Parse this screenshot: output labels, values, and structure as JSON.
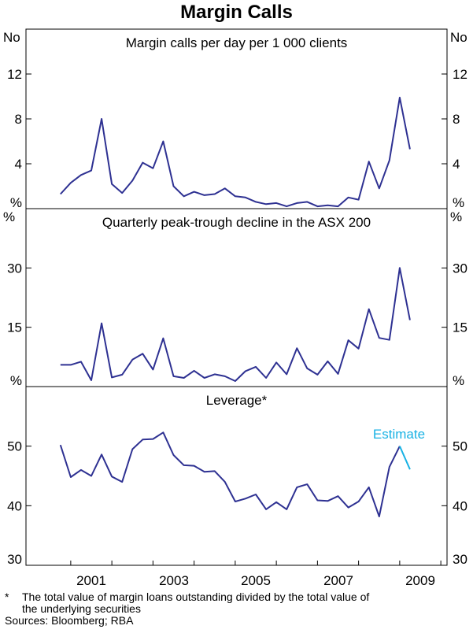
{
  "title": "Margin Calls",
  "footnote": {
    "marker": "*",
    "text_line1": "The total value of margin loans outstanding divided by the total value of",
    "text_line2": "the underlying securities",
    "sources": "Sources: Bloomberg; RBA"
  },
  "colors": {
    "series": "#2e3192",
    "estimate": "#19b2e4",
    "estimate_label": "#19b2e4"
  },
  "chart_data": [
    {
      "type": "line",
      "title": "Margin calls per day per 1 000 clients",
      "unit_label": "No",
      "y_ticks": [
        0,
        4,
        8,
        12
      ],
      "y_tick_labels": [
        "%",
        "4",
        "8",
        "12"
      ],
      "ylim": [
        0,
        16
      ],
      "x_ticks": [
        2001,
        2003,
        2005,
        2007,
        2009
      ],
      "x_tick_labels": [
        "2001",
        "2003",
        "2005",
        "2007",
        "2009"
      ],
      "grid": false,
      "series": [
        {
          "x": [
            2000.25,
            2000.5,
            2000.75,
            2001.0,
            2001.25,
            2001.5,
            2001.75,
            2002.0,
            2002.25,
            2002.5,
            2002.75,
            2003.0,
            2003.25,
            2003.5,
            2003.75,
            2004.0,
            2004.25,
            2004.5,
            2004.75,
            2005.0,
            2005.25,
            2005.5,
            2005.75,
            2006.0,
            2006.25,
            2006.5,
            2006.75,
            2007.0,
            2007.25,
            2007.5,
            2007.75,
            2008.0,
            2008.25,
            2008.5,
            2008.75
          ],
          "values": [
            1.3,
            2.3,
            3.0,
            3.4,
            8.0,
            2.2,
            1.4,
            2.5,
            4.1,
            3.6,
            6.0,
            2.0,
            1.1,
            1.5,
            1.2,
            1.3,
            1.8,
            1.1,
            1.0,
            0.6,
            0.4,
            0.5,
            0.2,
            0.5,
            0.6,
            0.2,
            0.3,
            0.2,
            1.0,
            0.8,
            4.2,
            1.8,
            4.3,
            9.9,
            5.3
          ]
        }
      ]
    },
    {
      "type": "line",
      "title": "Quarterly peak-trough decline in the ASX 200",
      "unit_label": "%",
      "y_ticks": [
        0,
        15,
        30
      ],
      "y_tick_labels": [
        "%",
        "15",
        "30"
      ],
      "ylim": [
        0,
        45
      ],
      "grid": false,
      "series": [
        {
          "x": [
            2000.25,
            2000.5,
            2000.75,
            2001.0,
            2001.25,
            2001.5,
            2001.75,
            2002.0,
            2002.25,
            2002.5,
            2002.75,
            2003.0,
            2003.25,
            2003.5,
            2003.75,
            2004.0,
            2004.25,
            2004.5,
            2004.75,
            2005.0,
            2005.25,
            2005.5,
            2005.75,
            2006.0,
            2006.25,
            2006.5,
            2006.75,
            2007.0,
            2007.25,
            2007.5,
            2007.75,
            2008.0,
            2008.25,
            2008.5,
            2008.75
          ],
          "values": [
            5.5,
            5.5,
            6.3,
            1.6,
            16.0,
            2.3,
            3.0,
            6.8,
            8.3,
            4.3,
            12.2,
            2.6,
            2.2,
            4.0,
            2.2,
            3.1,
            2.6,
            1.4,
            3.9,
            5.0,
            2.2,
            6.1,
            3.1,
            9.7,
            4.6,
            3.0,
            6.4,
            3.2,
            11.7,
            9.6,
            19.6,
            12.3,
            11.8,
            30.0,
            16.8
          ]
        }
      ]
    },
    {
      "type": "line",
      "title": "Leverage*",
      "unit_label": "",
      "y_ticks": [
        30,
        40,
        50
      ],
      "y_tick_labels": [
        "30",
        "40",
        "50"
      ],
      "ylim": [
        30,
        60
      ],
      "annotation": "Estimate",
      "grid": false,
      "series": [
        {
          "x": [
            2000.25,
            2000.5,
            2000.75,
            2001.0,
            2001.25,
            2001.5,
            2001.75,
            2002.0,
            2002.25,
            2002.5,
            2002.75,
            2003.0,
            2003.25,
            2003.5,
            2003.75,
            2004.0,
            2004.25,
            2004.5,
            2004.75,
            2005.0,
            2005.25,
            2005.5,
            2005.75,
            2006.0,
            2006.25,
            2006.5,
            2006.75,
            2007.0,
            2007.25,
            2007.5,
            2007.75,
            2008.0,
            2008.25,
            2008.5
          ],
          "values": [
            50.2,
            44.8,
            46.0,
            45.0,
            48.6,
            44.9,
            44.0,
            49.5,
            51.1,
            51.2,
            52.3,
            48.5,
            46.8,
            46.7,
            45.7,
            45.8,
            44.0,
            40.7,
            41.2,
            41.9,
            39.4,
            40.6,
            39.4,
            43.1,
            43.6,
            40.9,
            40.8,
            41.6,
            39.7,
            40.7,
            43.1,
            38.2,
            46.5,
            50.0
          ]
        },
        {
          "x": [
            2008.5,
            2008.75
          ],
          "values": [
            50.0,
            46.1
          ],
          "estimate": true
        }
      ]
    }
  ]
}
